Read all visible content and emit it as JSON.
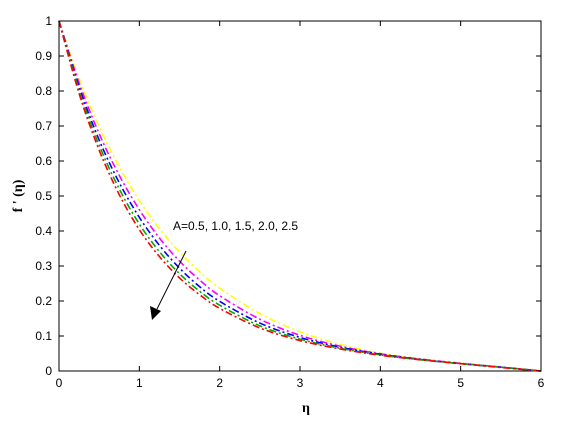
{
  "chart_data": {
    "type": "line",
    "title": "",
    "xlabel": "η",
    "ylabel": "f ' (η)",
    "xlim": [
      0,
      6
    ],
    "ylim": [
      0,
      1
    ],
    "x_ticks": [
      "0",
      "1",
      "2",
      "3",
      "4",
      "5",
      "6"
    ],
    "y_ticks": [
      "0",
      "0.1",
      "0.2",
      "0.3",
      "0.4",
      "0.5",
      "0.6",
      "0.7",
      "0.8",
      "0.9",
      "1"
    ],
    "grid": false,
    "legend": "none",
    "annotation": "A=0.5, 1.0, 1.5, 2.0, 2.5",
    "x": [
      0,
      0.25,
      0.5,
      0.75,
      1,
      1.25,
      1.5,
      1.75,
      2,
      2.5,
      3,
      3.5,
      4,
      4.5,
      5,
      5.5,
      6
    ],
    "series": [
      {
        "color": "#ffff00",
        "values": [
          1.0,
          0.835,
          0.698,
          0.583,
          0.487,
          0.407,
          0.34,
          0.284,
          0.237,
          0.164,
          0.112,
          0.076,
          0.051,
          0.035,
          0.022,
          0.011,
          0.0
        ]
      },
      {
        "color": "#ff00ff",
        "values": [
          1.0,
          0.823,
          0.678,
          0.559,
          0.461,
          0.38,
          0.314,
          0.26,
          0.215,
          0.148,
          0.102,
          0.071,
          0.049,
          0.034,
          0.022,
          0.011,
          0.0
        ]
      },
      {
        "color": "#0000ff",
        "values": [
          1.0,
          0.812,
          0.66,
          0.538,
          0.439,
          0.359,
          0.294,
          0.241,
          0.199,
          0.137,
          0.096,
          0.068,
          0.048,
          0.033,
          0.021,
          0.011,
          0.0
        ]
      },
      {
        "color": "#00aa00",
        "values": [
          1.0,
          0.802,
          0.645,
          0.52,
          0.42,
          0.341,
          0.278,
          0.228,
          0.188,
          0.129,
          0.091,
          0.065,
          0.046,
          0.032,
          0.021,
          0.011,
          0.0
        ]
      },
      {
        "color": "#ff0000",
        "values": [
          1.0,
          0.793,
          0.631,
          0.504,
          0.404,
          0.327,
          0.266,
          0.218,
          0.179,
          0.123,
          0.087,
          0.063,
          0.045,
          0.032,
          0.021,
          0.01,
          0.0
        ]
      }
    ]
  }
}
